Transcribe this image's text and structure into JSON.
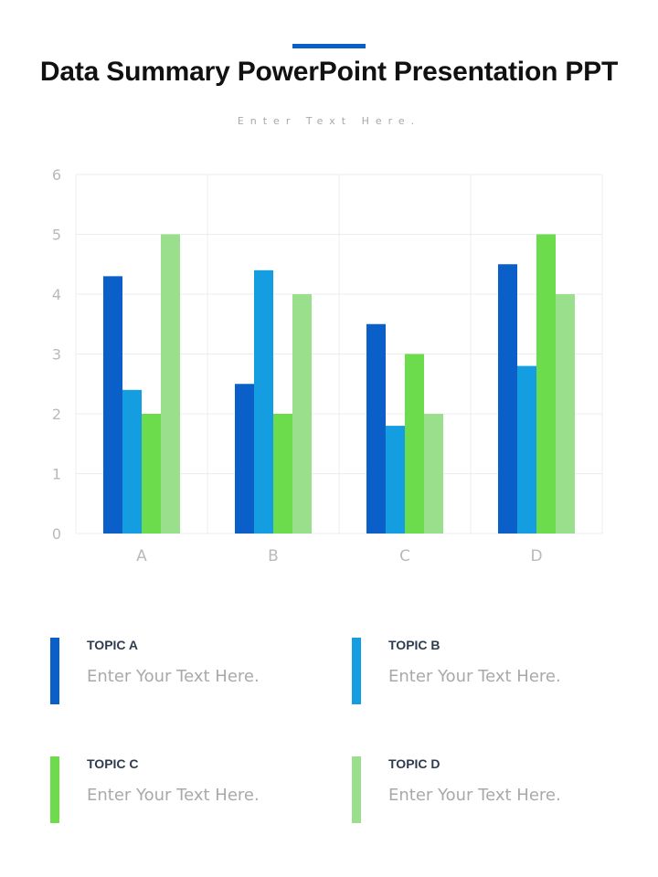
{
  "header": {
    "title": "Data Summary PowerPoint Presentation PPT",
    "subtitle": "Enter Text Here."
  },
  "colors": {
    "accent": "#0a5fc9",
    "series": [
      "#0a5fc9",
      "#159de2",
      "#6cdc4c",
      "#9adf8c"
    ]
  },
  "chart_data": {
    "type": "bar",
    "categories": [
      "A",
      "B",
      "C",
      "D"
    ],
    "series": [
      {
        "values": [
          4.3,
          2.5,
          3.5,
          4.5
        ]
      },
      {
        "values": [
          2.4,
          4.4,
          1.8,
          2.8
        ]
      },
      {
        "values": [
          2.0,
          2.0,
          3.0,
          5.0
        ]
      },
      {
        "values": [
          5.0,
          4.0,
          2.0,
          4.0
        ]
      }
    ],
    "ylim": [
      0,
      6
    ],
    "yticks": [
      0,
      1,
      2,
      3,
      4,
      5,
      6
    ],
    "grid": true,
    "title": "",
    "xlabel": "",
    "ylabel": ""
  },
  "legend": [
    {
      "topic": "TOPIC A",
      "text": "Enter Your Text Here."
    },
    {
      "topic": "TOPIC B",
      "text": "Enter Your Text Here."
    },
    {
      "topic": "TOPIC C",
      "text": "Enter Your Text Here."
    },
    {
      "topic": "TOPIC D",
      "text": "Enter Your Text Here."
    }
  ]
}
